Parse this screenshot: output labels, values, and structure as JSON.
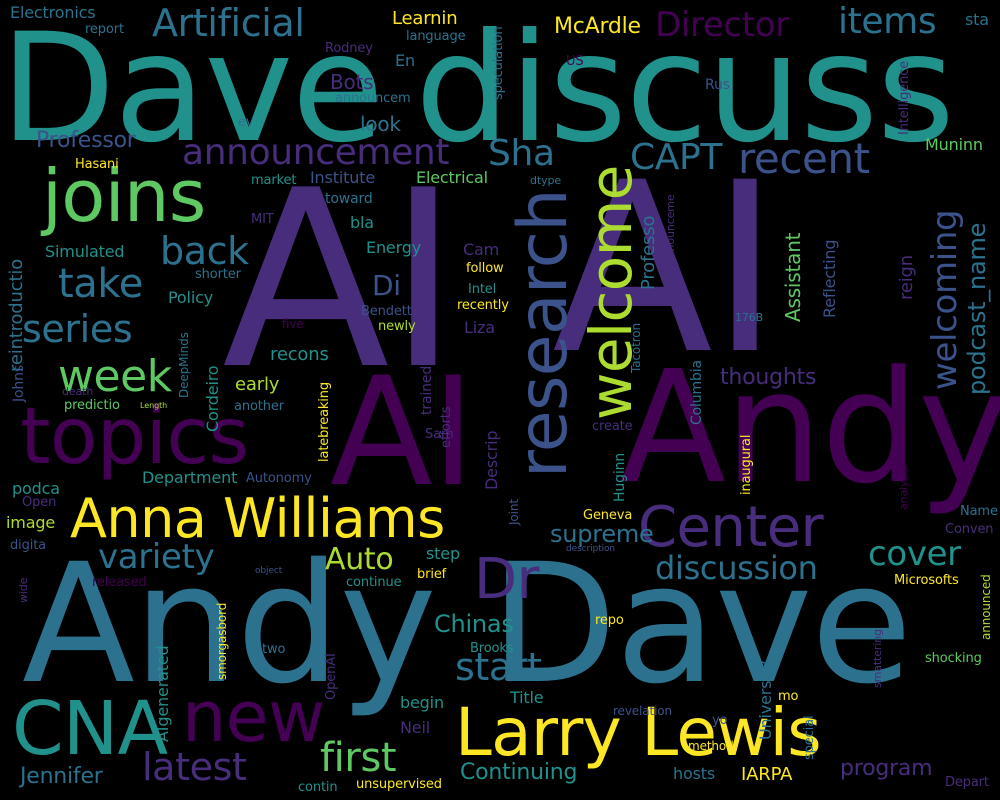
{
  "palette": {
    "dark_purple": "#440154",
    "purple": "#472d7b",
    "indigo": "#3b528b",
    "blue": "#2c728e",
    "teal": "#21918c",
    "green_teal": "#28ae80",
    "green": "#5ec962",
    "yellow_green": "#addc30",
    "yellow": "#fde725",
    "background": "#000000"
  },
  "words": [
    "AI",
    "AI",
    "AI",
    "Andy",
    "Dave",
    "discuss",
    "Andy",
    "Dave",
    "topics",
    "joins",
    "research",
    "welcome",
    "Anna Williams",
    "Larry Lewis",
    "CNA",
    "new",
    "Center",
    "Dr",
    "Artificial",
    "Director",
    "items",
    "recent",
    "announcement",
    "CAPT",
    "Sha",
    "take",
    "back",
    "series",
    "week",
    "latest",
    "first",
    "start",
    "variety",
    "cover",
    "discussion",
    "welcoming",
    "podcast_name",
    "Auto",
    "supreme",
    "Chinas",
    "Continuing",
    "program",
    "Jennifer",
    "thoughts",
    "McArdle",
    "Learnin",
    "Electronics",
    "report",
    "Rodney",
    "language",
    "En",
    "US",
    "speculation",
    "Rus",
    "Intelligence",
    "sta",
    "announcem",
    "Bots",
    "look",
    "Professor",
    "Hasani",
    "ev",
    "market",
    "MIT",
    "Institute",
    "Electrical",
    "dtype",
    "announceme",
    "Muninn",
    "toward",
    "bla",
    "Energy",
    "Simulated",
    "shorter",
    "Policy",
    "reintroductio",
    "Di",
    "Intel",
    "follow",
    "recently",
    "Bendett",
    "newly",
    "Liza",
    "Cam",
    "Professo",
    "Assistant",
    "Reflecting",
    "reign",
    "Tacotron",
    "176B",
    "five",
    "recons",
    "death",
    "DeepMinds",
    "early",
    "Cordeiro",
    "Columbia",
    "Johns",
    "predictio",
    "Length",
    "another",
    "latebreaking",
    "trained",
    "efforts",
    "create",
    "Sam",
    "Descrip",
    "Joint",
    "Huginn",
    "analysis",
    "inaugural",
    "Department",
    "Autonomy",
    "podca",
    "Open",
    "image",
    "digita",
    "Geneva",
    "Conven",
    "description",
    "Name",
    "wide",
    "released",
    "object",
    "continue",
    "brief",
    "step",
    "Microsofts",
    "announced",
    "two",
    "smorgasbord",
    "OpenAI",
    "repo",
    "Brooks",
    "University",
    "smattering",
    "shocking",
    "AIgenerated",
    "begin",
    "Title",
    "revelation",
    "mo",
    "Neil",
    "special",
    "method",
    "yo",
    "hosts",
    "IARPA",
    "contin",
    "unsupervised",
    "Depart",
    "Engine"
  ]
}
